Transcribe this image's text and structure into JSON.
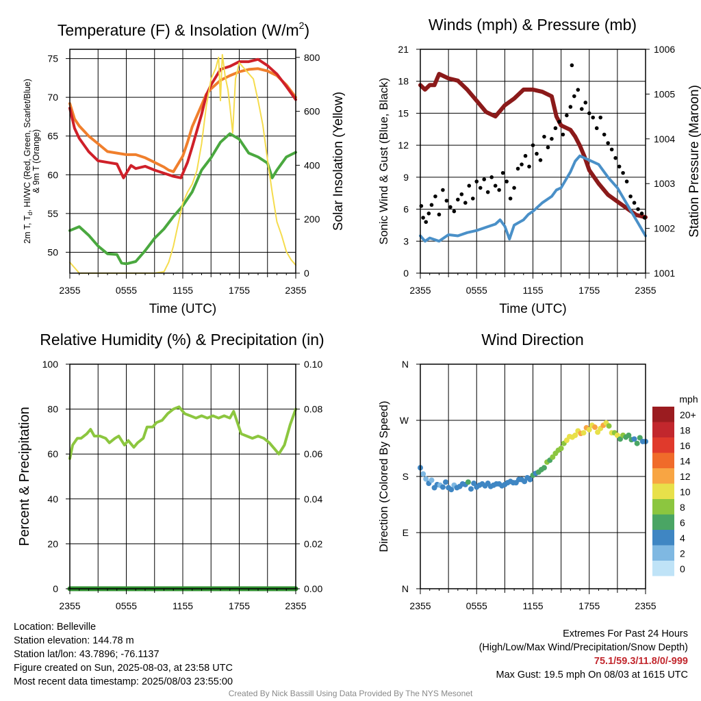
{
  "panels": {
    "temperature": {
      "title": "Temperature (F) & Insolation (W/m²)",
      "ylabel_left_line1": "2m T, Td, HI/WC (Red, Green, Scarlet/Blue)",
      "ylabel_left_line2": "& 9m T (Orange)",
      "ylabel_right": "Solar Insolation (Yellow)",
      "xlabel": "Time (UTC)"
    },
    "winds": {
      "title": "Winds (mph) & Pressure (mb)",
      "ylabel_left": "Sonic Wind & Gust (Blue, Black)",
      "ylabel_right": "Station Pressure (Maroon)",
      "xlabel": "Time (UTC)"
    },
    "humidity": {
      "title": "Relative Humidity (%) & Precipitation (in)",
      "ylabel_left": "Percent & Precipitation"
    },
    "direction": {
      "title": "Wind Direction",
      "ylabel_left": "Direction (Colored By Speed)",
      "colorbar_title": "mph",
      "colorbar_labels": [
        "20+",
        "18",
        "16",
        "14",
        "12",
        "10",
        "8",
        "6",
        "4",
        "2",
        "0"
      ],
      "colorbar_colors": [
        "#9b1c20",
        "#c2272d",
        "#e03a2c",
        "#f06b2a",
        "#f8a543",
        "#e8e04a",
        "#8cc63f",
        "#4aa564",
        "#3f86c3",
        "#7fb8e2",
        "#bfe3f7"
      ]
    }
  },
  "info": {
    "location": "Location: Belleville",
    "elevation": "Station elevation: 144.78 m",
    "latlon": "Station lat/lon: 43.7896; -76.1137",
    "created": "Figure created on Sun, 2025-08-03, at 23:58 UTC",
    "recent": "Most recent data timestamp: 2025/08/03 23:55:00",
    "extremes_title": "Extremes For Past 24 Hours",
    "extremes_sub": "(High/Low/Max Wind/Precipitation/Snow Depth)",
    "extremes_values": "75.1/59.3/11.8/0/-999",
    "max_gust": "Max Gust: 19.5 mph On 08/03 at 1615 UTC",
    "credit": "Created By Nick Bassill Using Data Provided By The NYS Mesonet"
  },
  "chart_data": [
    {
      "type": "line",
      "panel": "temperature",
      "x_ticks": [
        "2355",
        "0555",
        "1155",
        "1755",
        "2355"
      ],
      "x_hours": [
        0,
        6,
        12,
        18,
        24
      ],
      "y_ticks": [
        50,
        55,
        60,
        65,
        70,
        75
      ],
      "ylim": [
        47.3,
        76.2
      ],
      "y2_ticks": [
        0,
        200,
        400,
        600,
        800
      ],
      "y2lim": [
        0,
        830
      ],
      "grid": true,
      "series": [
        {
          "color": "#f07f2c",
          "axis": "left",
          "x": [
            0,
            0.5,
            1,
            2,
            3,
            4,
            5,
            6,
            7,
            8,
            9,
            10,
            10.5,
            11,
            12,
            12.5,
            13,
            14,
            14.5,
            15,
            16,
            17,
            18,
            19,
            20,
            21,
            22,
            23,
            24
          ],
          "y": [
            69.2,
            67.2,
            66.3,
            65.0,
            64.0,
            63.0,
            62.8,
            62.6,
            62.6,
            62.2,
            61.6,
            61.0,
            60.6,
            60.4,
            62.4,
            64.2,
            66.2,
            69.0,
            70.4,
            71.1,
            72.2,
            72.8,
            73.3,
            73.6,
            73.7,
            73.4,
            72.8,
            71.6,
            70.0
          ]
        },
        {
          "color": "#cf2029",
          "axis": "left",
          "x": [
            0,
            0.5,
            1,
            2,
            3,
            4,
            5,
            5.7,
            6.5,
            7,
            8,
            9,
            10,
            11,
            11.8,
            12.5,
            13,
            14,
            14.5,
            15,
            16,
            17,
            18,
            19,
            20,
            21,
            22,
            23,
            24
          ],
          "y": [
            68.6,
            66.0,
            64.7,
            63.0,
            61.8,
            61.6,
            61.4,
            59.6,
            61.2,
            60.8,
            61.1,
            60.6,
            60.2,
            59.8,
            59.6,
            61.6,
            63.6,
            67.8,
            70.3,
            71.6,
            73.6,
            74.0,
            74.6,
            74.6,
            74.9,
            74.1,
            73.0,
            71.4,
            69.7
          ]
        },
        {
          "color": "#4aa83f",
          "axis": "left",
          "x": [
            0,
            1,
            2,
            3,
            4,
            5,
            5.5,
            6,
            7,
            8,
            9,
            10,
            11,
            12,
            13,
            14,
            15,
            16,
            17,
            18,
            19,
            20,
            21,
            21.5,
            22,
            23,
            24
          ],
          "y": [
            52.8,
            53.3,
            52.2,
            50.8,
            49.8,
            49.7,
            48.6,
            48.5,
            48.8,
            50.2,
            51.8,
            53.0,
            54.6,
            56.0,
            57.8,
            60.6,
            62.2,
            64.2,
            65.3,
            64.6,
            62.8,
            62.3,
            61.5,
            59.6,
            60.6,
            62.3,
            62.9
          ]
        },
        {
          "color": "#f5dc4d",
          "axis": "right",
          "x": [
            0,
            1,
            2,
            3,
            4,
            5,
            6,
            7,
            8,
            9,
            10,
            10.5,
            11,
            11.5,
            12,
            12.5,
            13,
            13.5,
            14,
            14.5,
            15,
            15.5,
            15.8,
            16,
            16.2,
            16.5,
            16.8,
            17,
            17.3,
            17.6,
            18,
            18.5,
            19,
            19.5,
            20,
            20.5,
            21,
            21.5,
            22,
            22.5,
            23,
            23.5,
            24
          ],
          "y": [
            40,
            0,
            0,
            0,
            0,
            0,
            0,
            0,
            0,
            0,
            5,
            40,
            100,
            180,
            260,
            300,
            330,
            380,
            480,
            620,
            720,
            760,
            800,
            640,
            810,
            730,
            680,
            620,
            520,
            720,
            780,
            760,
            740,
            720,
            640,
            550,
            420,
            300,
            190,
            140,
            80,
            50,
            30
          ]
        }
      ]
    },
    {
      "type": "line",
      "panel": "winds",
      "x_ticks": [
        "2355",
        "0555",
        "1155",
        "1755",
        "2355"
      ],
      "x_hours": [
        0,
        6,
        12,
        18,
        24
      ],
      "y_ticks": [
        0,
        3,
        6,
        9,
        12,
        15,
        18,
        21
      ],
      "ylim": [
        0,
        21
      ],
      "y2_ticks": [
        1001,
        1002,
        1003,
        1004,
        1005,
        1006
      ],
      "y2lim": [
        1001,
        1006
      ],
      "grid": true,
      "series": [
        {
          "color": "#8b1a1a",
          "axis": "right",
          "x": [
            0,
            0.5,
            1,
            1.5,
            2,
            3,
            4,
            5,
            6,
            7,
            8,
            9,
            10,
            11,
            12,
            13,
            14,
            14.5,
            15,
            16,
            16.5,
            17,
            17.5,
            18,
            19,
            20,
            21,
            22,
            23,
            24
          ],
          "y": [
            1005.2,
            1005.1,
            1005.2,
            1005.2,
            1005.45,
            1005.35,
            1005.3,
            1005.1,
            1004.85,
            1004.6,
            1004.5,
            1004.75,
            1004.9,
            1005.1,
            1005.1,
            1005.05,
            1004.95,
            1004.5,
            1004.3,
            1004.2,
            1004.05,
            1003.85,
            1003.6,
            1003.3,
            1003.0,
            1002.75,
            1002.6,
            1002.45,
            1002.3,
            1002.25
          ]
        },
        {
          "color": "#4a90c8",
          "axis": "left",
          "x": [
            0,
            0.5,
            1,
            2,
            3,
            4,
            5,
            6,
            7,
            8,
            8.5,
            9,
            9.5,
            10,
            11,
            11.5,
            12,
            13,
            14,
            14.5,
            15,
            16,
            16.5,
            17,
            18,
            19,
            20,
            21,
            22,
            23,
            24
          ],
          "y": [
            3.5,
            3.0,
            3.3,
            3.0,
            3.6,
            3.5,
            3.8,
            4.0,
            4.3,
            4.6,
            5.0,
            4.4,
            3.2,
            4.5,
            5.0,
            5.5,
            5.8,
            6.6,
            7.2,
            7.8,
            8.0,
            9.5,
            10.5,
            11.0,
            10.6,
            10.2,
            9.0,
            8.0,
            6.5,
            5.0,
            3.5
          ]
        },
        {
          "type": "scatter",
          "name": "gust",
          "color": "#000000",
          "axis": "left",
          "x": [
            0.1,
            0.3,
            0.6,
            0.9,
            1.2,
            1.6,
            2.0,
            2.4,
            2.8,
            3.2,
            3.6,
            4.0,
            4.4,
            4.8,
            5.2,
            5.6,
            6.0,
            6.4,
            6.8,
            7.2,
            7.6,
            8.0,
            8.4,
            8.8,
            9.2,
            9.6,
            10.0,
            10.4,
            10.8,
            11.2,
            11.6,
            12.0,
            12.4,
            12.8,
            13.2,
            13.6,
            14.0,
            14.4,
            14.8,
            15.2,
            15.6,
            16.0,
            16.15,
            16.4,
            16.8,
            17.2,
            17.6,
            18.0,
            18.4,
            18.8,
            19.2,
            19.6,
            20.0,
            20.4,
            20.8,
            21.2,
            21.6,
            22.0,
            22.4,
            22.8,
            23.2,
            23.6,
            23.9
          ],
          "y": [
            6.3,
            5.2,
            4.8,
            5.6,
            6.4,
            7.2,
            5.5,
            7.8,
            6.8,
            6.2,
            5.8,
            6.9,
            7.4,
            6.6,
            8.2,
            7.0,
            8.6,
            8.0,
            8.8,
            7.6,
            9.0,
            8.2,
            7.8,
            9.4,
            8.6,
            7.0,
            8.0,
            9.8,
            10.2,
            11.0,
            10.0,
            12.0,
            11.2,
            10.6,
            12.8,
            11.8,
            12.6,
            13.6,
            14.2,
            13.0,
            14.8,
            15.6,
            19.5,
            16.6,
            17.2,
            15.4,
            16.0,
            15.0,
            14.6,
            13.6,
            14.6,
            13.0,
            12.2,
            11.6,
            10.8,
            10.0,
            9.4,
            8.6,
            7.2,
            6.6,
            6.0,
            5.6,
            5.2
          ]
        }
      ]
    },
    {
      "type": "line",
      "panel": "humidity",
      "x_ticks": [
        "2355",
        "0555",
        "1155",
        "1755",
        "2355"
      ],
      "x_hours": [
        0,
        6,
        12,
        18,
        24
      ],
      "y_ticks": [
        0,
        20,
        40,
        60,
        80,
        100
      ],
      "ylim": [
        0,
        100
      ],
      "y2_ticks": [
        "0.00",
        "0.02",
        "0.04",
        "0.06",
        "0.08",
        "0.10"
      ],
      "y2lim": [
        0,
        0.1
      ],
      "grid": true,
      "series": [
        {
          "color": "#8cc63f",
          "axis": "left",
          "x": [
            0,
            0.3,
            0.8,
            1.2,
            1.8,
            2.2,
            2.6,
            3.2,
            3.8,
            4.2,
            4.8,
            5.2,
            5.8,
            6.2,
            6.8,
            7.2,
            7.8,
            8.2,
            8.8,
            9.2,
            9.8,
            10.4,
            11.0,
            11.6,
            12.2,
            12.8,
            13.4,
            14.0,
            14.6,
            15.2,
            15.8,
            16.4,
            17.0,
            17.4,
            17.8,
            18.2,
            18.8,
            19.4,
            20.0,
            20.6,
            21.2,
            21.8,
            22.2,
            22.8,
            23.4,
            24.0
          ],
          "y": [
            58,
            64,
            67,
            67,
            69,
            71,
            68,
            68,
            67,
            65,
            67,
            68,
            64,
            66,
            63,
            65,
            67,
            72,
            72,
            74,
            75,
            78,
            80,
            81,
            78,
            77,
            76,
            77,
            76,
            77,
            76,
            77,
            76,
            79,
            74,
            69,
            68,
            67,
            68,
            67,
            65,
            62,
            60,
            64,
            73,
            80
          ]
        },
        {
          "color": "#2f8f2f",
          "axis": "right",
          "name": "precip",
          "x": [
            0,
            24
          ],
          "y": [
            0,
            0
          ]
        }
      ]
    },
    {
      "type": "scatter",
      "panel": "direction",
      "x_ticks": [
        "2355",
        "0555",
        "1155",
        "1755",
        "2355"
      ],
      "x_hours": [
        0,
        6,
        12,
        18,
        24
      ],
      "y_ticks": [
        "N",
        "E",
        "S",
        "W",
        "N"
      ],
      "y_degrees": [
        0,
        90,
        180,
        270,
        360
      ],
      "ylim": [
        0,
        360
      ],
      "grid": true,
      "x": [
        0.0,
        0.3,
        0.6,
        0.9,
        1.2,
        1.5,
        1.8,
        2.1,
        2.4,
        2.7,
        3.0,
        3.3,
        3.6,
        3.9,
        4.2,
        4.5,
        4.8,
        5.1,
        5.4,
        5.7,
        6.0,
        6.3,
        6.6,
        6.9,
        7.2,
        7.5,
        7.8,
        8.1,
        8.4,
        8.7,
        9.0,
        9.3,
        9.6,
        9.9,
        10.2,
        10.5,
        10.8,
        11.1,
        11.4,
        11.7,
        12.0,
        12.3,
        12.6,
        12.9,
        13.2,
        13.5,
        13.8,
        14.1,
        14.4,
        14.7,
        15.0,
        15.3,
        15.6,
        15.9,
        16.2,
        16.5,
        16.8,
        17.1,
        17.4,
        17.7,
        18.0,
        18.3,
        18.6,
        18.9,
        19.2,
        19.5,
        19.8,
        20.1,
        20.4,
        20.7,
        21.0,
        21.3,
        21.6,
        21.9,
        22.2,
        22.5,
        22.8,
        23.1,
        23.4,
        23.7,
        24.0
      ],
      "y": [
        194,
        184,
        176,
        169,
        174,
        162,
        167,
        166,
        163,
        171,
        162,
        159,
        166,
        162,
        164,
        168,
        167,
        171,
        160,
        169,
        163,
        166,
        168,
        165,
        169,
        164,
        166,
        168,
        168,
        165,
        167,
        170,
        172,
        170,
        170,
        175,
        175,
        172,
        178,
        175,
        182,
        185,
        187,
        191,
        194,
        203,
        206,
        211,
        217,
        222,
        225,
        233,
        238,
        244,
        243,
        246,
        253,
        249,
        250,
        258,
        255,
        262,
        259,
        251,
        257,
        262,
        266,
        261,
        250,
        250,
        246,
        240,
        246,
        243,
        246,
        239,
        240,
        233,
        242,
        236,
        236
      ],
      "speeds": [
        3,
        2,
        2,
        3,
        2,
        3,
        3,
        2,
        3,
        3,
        3,
        3,
        2,
        3,
        4,
        3,
        3,
        6,
        3,
        3,
        3,
        4,
        3,
        3,
        4,
        3,
        4,
        3,
        3,
        4,
        3,
        4,
        4,
        3,
        4,
        4,
        3,
        4,
        4,
        4,
        5,
        4,
        5,
        5,
        6,
        7,
        5,
        7,
        8,
        7,
        8,
        8,
        9,
        9,
        10,
        9,
        10,
        11,
        10,
        12,
        10,
        10,
        11,
        10,
        9,
        11,
        10,
        8,
        9,
        7,
        9,
        6,
        7,
        6,
        6,
        5,
        4,
        6,
        5,
        4,
        4
      ]
    }
  ]
}
